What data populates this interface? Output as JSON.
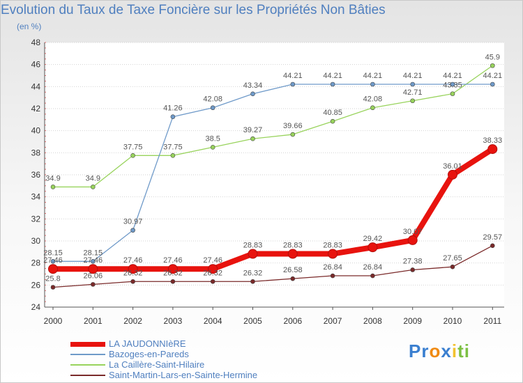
{
  "title": "Evolution du Taux de Taxe Foncière sur les Propriétés Non Bâties",
  "unit_label": "(en %)",
  "logo": {
    "letters": [
      "P",
      "r",
      "o",
      "x",
      "i",
      "t",
      "i"
    ],
    "colors": [
      "#3a7fd0",
      "#3a7fd0",
      "#f08a12",
      "#3a7fd0",
      "#f2c230",
      "#7cc043",
      "#7cc043"
    ]
  },
  "chart_data": {
    "type": "line",
    "title": "Evolution du Taux de Taxe Foncière sur les Propriétés Non Bâties",
    "ylabel": "(en %)",
    "x": [
      "2000",
      "2001",
      "2002",
      "2003",
      "2004",
      "2005",
      "2006",
      "2007",
      "2008",
      "2009",
      "2010",
      "2011"
    ],
    "ylim": [
      24,
      48
    ],
    "yticks": [
      24,
      26,
      28,
      30,
      32,
      34,
      36,
      38,
      40,
      42,
      44,
      46,
      48
    ],
    "grid": "horizontal",
    "legend_position": "bottom-left",
    "series": [
      {
        "name": "LA JAUDONNIèRE",
        "color": "#e8130e",
        "values": [
          27.46,
          27.46,
          27.46,
          27.46,
          27.46,
          28.83,
          28.83,
          28.83,
          29.42,
          30.07,
          36.01,
          38.33
        ],
        "labels": [
          "27.46",
          "27.46",
          "27.46",
          "27.46",
          "27.46",
          "28.83",
          "28.83",
          "28.83",
          "29.42",
          "30.07",
          "36.01",
          "38.33"
        ]
      },
      {
        "name": "Bazoges-en-Pareds",
        "color": "#6f9ac9",
        "values": [
          28.15,
          28.15,
          30.97,
          41.26,
          42.08,
          43.34,
          44.21,
          44.21,
          44.21,
          44.21,
          44.21,
          44.21
        ],
        "labels": [
          "28.15",
          "28.15",
          "30.97",
          "41.26",
          "42.08",
          "43.34",
          "44.21",
          "44.21",
          "44.21",
          "44.21",
          "44.21",
          "44.21"
        ]
      },
      {
        "name": "La Caillère-Saint-Hilaire",
        "color": "#98d35c",
        "values": [
          34.9,
          34.9,
          37.75,
          37.75,
          38.5,
          39.27,
          39.66,
          40.85,
          42.08,
          42.71,
          43.35,
          45.9
        ],
        "labels": [
          "34.9",
          "34.9",
          "37.75",
          "37.75",
          "38.5",
          "39.27",
          "39.66",
          "40.85",
          "42.08",
          "42.71",
          "43.35",
          "45.9"
        ]
      },
      {
        "name": "Saint-Martin-Lars-en-Sainte-Hermine",
        "color": "#7a2a2a",
        "values": [
          25.8,
          26.06,
          26.32,
          26.32,
          26.32,
          26.32,
          26.58,
          26.84,
          26.84,
          27.38,
          27.65,
          29.57
        ],
        "labels": [
          "25.8",
          "26.06",
          "26.32",
          "26.32",
          "26.32",
          "26.32",
          "26.58",
          "26.84",
          "26.84",
          "27.38",
          "27.65",
          "29.57"
        ]
      }
    ]
  }
}
